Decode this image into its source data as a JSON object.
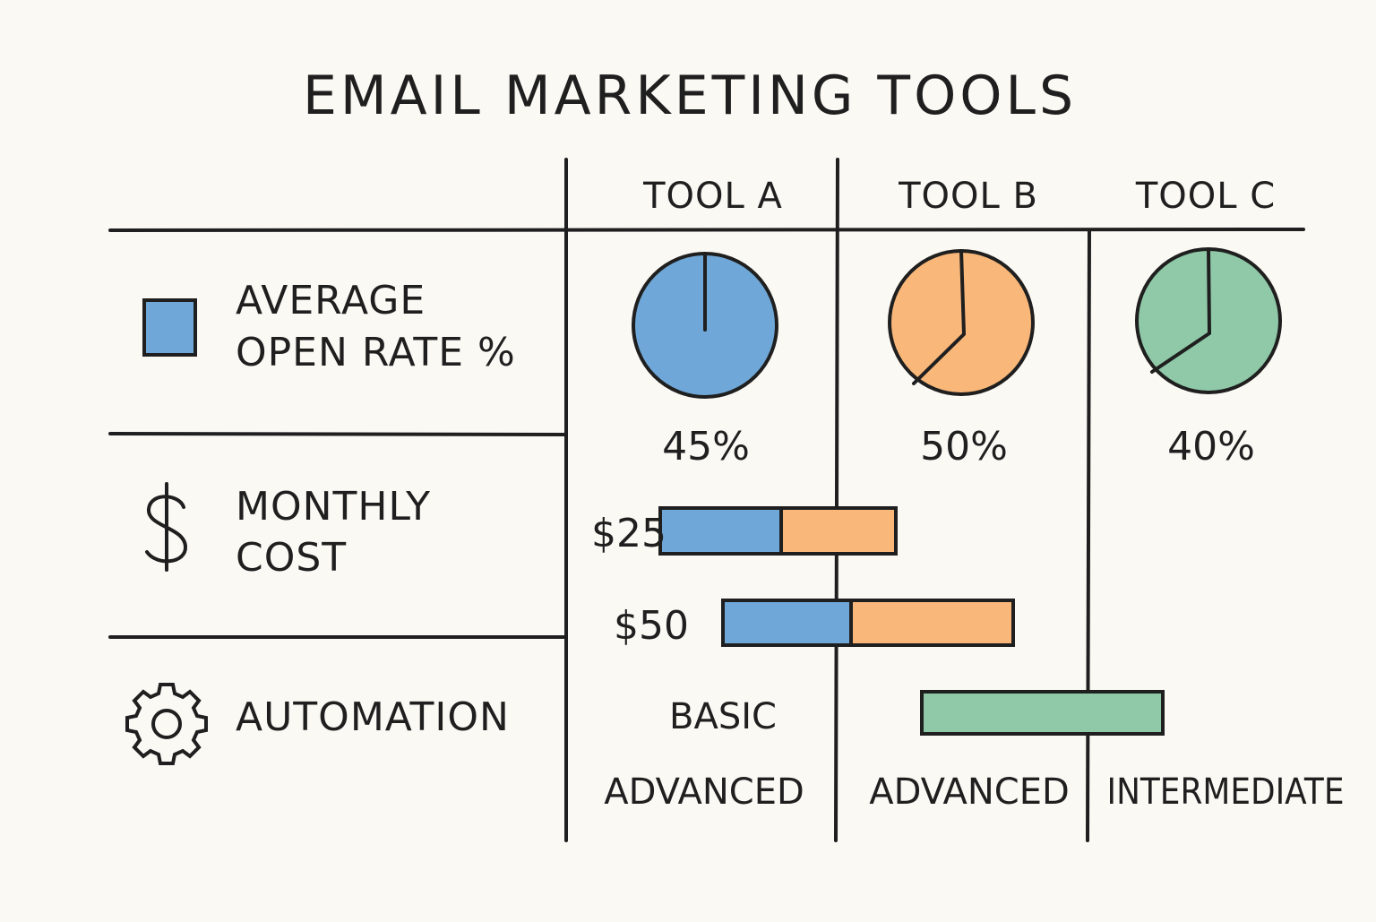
{
  "title": "EMAIL MARKETING TOOLS",
  "columns": [
    "TOOL A",
    "TOOL B",
    "TOOL C"
  ],
  "rows": {
    "open_rate": {
      "line1": "AVERAGE",
      "line2": "OPEN RATE %",
      "icon": "square-icon"
    },
    "cost": {
      "line1": "MONTHLY",
      "line2": "COST",
      "icon": "dollar-icon"
    },
    "automation": {
      "label": "AUTOMATION",
      "icon": "gear-icon"
    }
  },
  "open_rates": [
    {
      "tool": "TOOL A",
      "value": 45,
      "label": "45%",
      "color": "#6fa8d8"
    },
    {
      "tool": "TOOL B",
      "value": 50,
      "label": "50%",
      "color": "#f9b77a"
    },
    {
      "tool": "TOOL C",
      "value": 40,
      "label": "40%",
      "color": "#8fc9a8"
    }
  ],
  "cost_labels": [
    "$25",
    "$50"
  ],
  "automation_levels": {
    "basic": "BASIC",
    "tool_a": "ADVANCED",
    "tool_b": "ADVANCED",
    "tool_c": "INTERMEDIATE"
  },
  "colors": {
    "blue": "#6fa8d8",
    "orange": "#f9b77a",
    "green": "#8fc9a8",
    "ink": "#1f1f1f"
  }
}
